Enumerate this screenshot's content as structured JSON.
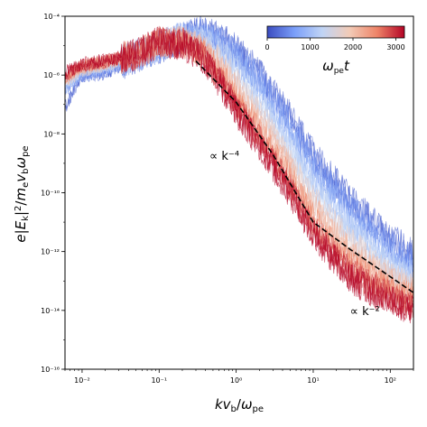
{
  "chart_data": {
    "type": "line",
    "title": "",
    "xlabel": "kv_b/ω_pe",
    "ylabel": "e|E_k|^2/m_e v_b ω_pe",
    "xscale": "log",
    "yscale": "log",
    "xlim": [
      0.006,
      200
    ],
    "ylim": [
      1e-16,
      0.0001
    ],
    "x_ticks": [
      {
        "value": 0.01,
        "label": "10⁻²"
      },
      {
        "value": 0.1,
        "label": "10⁻¹"
      },
      {
        "value": 1,
        "label": "10⁰"
      },
      {
        "value": 10,
        "label": "10¹"
      },
      {
        "value": 100,
        "label": "10²"
      }
    ],
    "y_ticks": [
      {
        "value": 1e-16,
        "label": "10⁻¹⁶"
      },
      {
        "value": 1e-14,
        "label": "10⁻¹⁴"
      },
      {
        "value": 1e-12,
        "label": "10⁻¹²"
      },
      {
        "value": 1e-10,
        "label": "10⁻¹⁰"
      },
      {
        "value": 1e-08,
        "label": "10⁻⁸"
      },
      {
        "value": 1e-06,
        "label": "10⁻⁶"
      },
      {
        "value": 0.0001,
        "label": "10⁻⁴"
      }
    ],
    "grid": false,
    "colorbar": {
      "label": "ω_pe t",
      "min": 0,
      "max": 3200,
      "ticks": [
        {
          "value": 0,
          "label": "0"
        },
        {
          "value": 1000,
          "label": "1000"
        },
        {
          "value": 2000,
          "label": "2000"
        },
        {
          "value": 3000,
          "label": "3000"
        }
      ],
      "colors": [
        "#3b4cc0",
        "#7b9ff9",
        "#c0d4f5",
        "#f2cbb7",
        "#ee8468",
        "#b40426"
      ],
      "placement": "top-right"
    },
    "series_description": "spectra colored by ω_pe t from 0 (blue) to 3200 (red)",
    "spectra": [
      {
        "t": 200,
        "points": [
          [
            0.006,
            8e-08
          ],
          [
            0.01,
            1e-06
          ],
          [
            0.02,
            1.2e-06
          ],
          [
            0.05,
            4e-06
          ],
          [
            0.1,
            8e-06
          ],
          [
            0.2,
            2e-05
          ],
          [
            0.35,
            3e-05
          ],
          [
            0.6,
            2e-05
          ],
          [
            1,
            8e-06
          ],
          [
            2,
            1.2e-06
          ],
          [
            5,
            4e-08
          ],
          [
            10,
            2e-09
          ],
          [
            30,
            6e-11
          ],
          [
            100,
            3e-12
          ],
          [
            200,
            8e-13
          ]
        ]
      },
      {
        "t": 500,
        "points": [
          [
            0.006,
            3e-07
          ],
          [
            0.01,
            1e-06
          ],
          [
            0.02,
            1.5e-06
          ],
          [
            0.05,
            4e-06
          ],
          [
            0.1,
            9e-06
          ],
          [
            0.2,
            2e-05
          ],
          [
            0.35,
            2.5e-05
          ],
          [
            0.6,
            1.5e-05
          ],
          [
            1,
            5e-06
          ],
          [
            2,
            7e-07
          ],
          [
            5,
            2e-08
          ],
          [
            10,
            1e-09
          ],
          [
            30,
            3e-11
          ],
          [
            100,
            1.5e-12
          ],
          [
            200,
            4e-13
          ]
        ]
      },
      {
        "t": 900,
        "points": [
          [
            0.006,
            4e-07
          ],
          [
            0.01,
            1.2e-06
          ],
          [
            0.02,
            2e-06
          ],
          [
            0.05,
            5e-06
          ],
          [
            0.1,
            1e-05
          ],
          [
            0.2,
            2e-05
          ],
          [
            0.35,
            2e-05
          ],
          [
            0.6,
            1e-05
          ],
          [
            1,
            3e-06
          ],
          [
            2,
            3e-07
          ],
          [
            5,
            8e-09
          ],
          [
            10,
            4e-10
          ],
          [
            30,
            1.2e-11
          ],
          [
            100,
            6e-13
          ],
          [
            200,
            2e-13
          ]
        ]
      },
      {
        "t": 1300,
        "points": [
          [
            0.006,
            5e-07
          ],
          [
            0.01,
            1.5e-06
          ],
          [
            0.02,
            2e-06
          ],
          [
            0.05,
            5e-06
          ],
          [
            0.1,
            1e-05
          ],
          [
            0.2,
            1.8e-05
          ],
          [
            0.35,
            1.5e-05
          ],
          [
            0.6,
            6e-06
          ],
          [
            1,
            1.5e-06
          ],
          [
            2,
            1.2e-07
          ],
          [
            5,
            3e-09
          ],
          [
            10,
            1.5e-10
          ],
          [
            30,
            5e-12
          ],
          [
            100,
            3e-13
          ],
          [
            200,
            1e-13
          ]
        ]
      },
      {
        "t": 1700,
        "points": [
          [
            0.006,
            6e-07
          ],
          [
            0.01,
            1.5e-06
          ],
          [
            0.02,
            2.2e-06
          ],
          [
            0.05,
            5e-06
          ],
          [
            0.1,
            1.2e-05
          ],
          [
            0.2,
            1.6e-05
          ],
          [
            0.35,
            1e-05
          ],
          [
            0.6,
            3e-06
          ],
          [
            1,
            6e-07
          ],
          [
            2,
            5e-08
          ],
          [
            5,
            1e-09
          ],
          [
            10,
            6e-11
          ],
          [
            30,
            2e-12
          ],
          [
            100,
            1.5e-13
          ],
          [
            200,
            6e-14
          ]
        ]
      },
      {
        "t": 2100,
        "points": [
          [
            0.006,
            7e-07
          ],
          [
            0.01,
            1.8e-06
          ],
          [
            0.02,
            2.5e-06
          ],
          [
            0.05,
            5e-06
          ],
          [
            0.1,
            1.2e-05
          ],
          [
            0.2,
            1.4e-05
          ],
          [
            0.35,
            8e-06
          ],
          [
            0.6,
            2e-06
          ],
          [
            1,
            3e-07
          ],
          [
            2,
            2e-08
          ],
          [
            5,
            6e-10
          ],
          [
            10,
            3e-11
          ],
          [
            30,
            9e-13
          ],
          [
            100,
            9e-14
          ],
          [
            200,
            4e-14
          ]
        ]
      },
      {
        "t": 2500,
        "points": [
          [
            0.006,
            8e-07
          ],
          [
            0.01,
            2e-06
          ],
          [
            0.02,
            2.8e-06
          ],
          [
            0.05,
            5e-06
          ],
          [
            0.1,
            1.3e-05
          ],
          [
            0.2,
            1.3e-05
          ],
          [
            0.35,
            6e-06
          ],
          [
            0.6,
            1.2e-06
          ],
          [
            1,
            1.5e-07
          ],
          [
            2,
            1e-08
          ],
          [
            5,
            3e-10
          ],
          [
            10,
            1.2e-11
          ],
          [
            30,
            4e-13
          ],
          [
            100,
            5e-14
          ],
          [
            200,
            2.5e-14
          ]
        ]
      },
      {
        "t": 2900,
        "points": [
          [
            0.006,
            1e-06
          ],
          [
            0.01,
            2.2e-06
          ],
          [
            0.02,
            3e-06
          ],
          [
            0.05,
            5e-06
          ],
          [
            0.1,
            1.3e-05
          ],
          [
            0.2,
            1.2e-05
          ],
          [
            0.35,
            5e-06
          ],
          [
            0.6,
            8e-07
          ],
          [
            1,
            9e-08
          ],
          [
            2,
            6e-09
          ],
          [
            5,
            1.5e-10
          ],
          [
            10,
            6e-12
          ],
          [
            30,
            2e-13
          ],
          [
            100,
            3e-14
          ],
          [
            200,
            1.5e-14
          ]
        ]
      },
      {
        "t": 3200,
        "points": [
          [
            0.006,
            1.2e-06
          ],
          [
            0.01,
            2.5e-06
          ],
          [
            0.02,
            3e-06
          ],
          [
            0.05,
            5e-06
          ],
          [
            0.1,
            1.4e-05
          ],
          [
            0.2,
            1.1e-05
          ],
          [
            0.35,
            4e-06
          ],
          [
            0.6,
            6e-07
          ],
          [
            1,
            6e-08
          ],
          [
            2,
            4e-09
          ],
          [
            5,
            1e-10
          ],
          [
            10,
            4e-12
          ],
          [
            30,
            1.2e-13
          ],
          [
            100,
            2e-14
          ],
          [
            200,
            1e-14
          ]
        ]
      }
    ],
    "reference_line": {
      "style": "dashed",
      "color": "#000000",
      "points": [
        [
          0.3,
          3e-06
        ],
        [
          1,
          1.2e-07
        ],
        [
          3,
          2e-09
        ],
        [
          10,
          1e-11
        ],
        [
          30,
          1.2e-12
        ],
        [
          100,
          1.4e-13
        ],
        [
          200,
          4e-14
        ]
      ]
    },
    "annotations": [
      {
        "text": "∝ k⁻⁴",
        "x": 0.45,
        "y": 1.3e-09
      },
      {
        "text": "∝ k⁻²",
        "x": 30,
        "y": 7e-15
      }
    ]
  }
}
